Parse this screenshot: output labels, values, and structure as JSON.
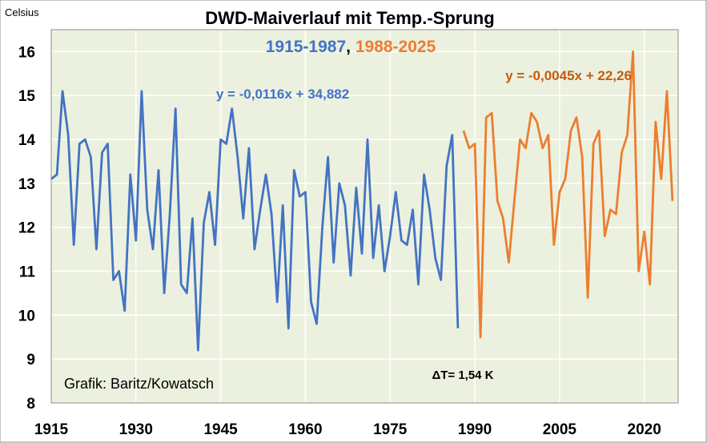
{
  "chart_data": {
    "type": "line",
    "title": "DWD-Maiverlauf mit Temp.-Sprung",
    "subtitle": {
      "part1": "1915-1987",
      "separator": ",",
      "part2": "1988-2025"
    },
    "y_unit_label": "Celsius",
    "xlim": [
      1915,
      2026
    ],
    "ylim": [
      8,
      16.5
    ],
    "xticks": [
      1915,
      1930,
      1945,
      1960,
      1975,
      1990,
      2005,
      2020
    ],
    "yticks": [
      8,
      9,
      10,
      11,
      12,
      13,
      14,
      15,
      16
    ],
    "grid": true,
    "legend": "none",
    "colors": {
      "plot_background": "#ebf1de",
      "series1": "#4472c4",
      "series2": "#ed7d31",
      "trend2": "#e2691d",
      "eq2": "#c55a11",
      "grid": "#ffffff"
    },
    "series": [
      {
        "x_start": 1915,
        "values": [
          13.1,
          13.2,
          15.1,
          14.1,
          11.6,
          13.9,
          14.0,
          13.6,
          11.5,
          13.7,
          13.9,
          10.8,
          11.0,
          10.1,
          13.2,
          11.7,
          15.1,
          12.4,
          11.5,
          13.3,
          10.5,
          12.3,
          14.7,
          10.7,
          10.5,
          12.2,
          9.2,
          12.1,
          12.8,
          11.6,
          14.0,
          13.9,
          14.7,
          13.6,
          12.2,
          13.8,
          11.5,
          12.4,
          13.2,
          12.3,
          10.3,
          12.5,
          9.7,
          13.3,
          12.7,
          12.8,
          10.3,
          9.8,
          12.0,
          13.6,
          11.2,
          13.0,
          12.5,
          10.9,
          12.9,
          11.4,
          14.0,
          11.3,
          12.5,
          11.0,
          11.8,
          12.8,
          11.7,
          11.6,
          12.4,
          10.7,
          13.2,
          12.4,
          11.3,
          10.8,
          13.4,
          14.1,
          9.7
        ]
      },
      {
        "x_start": 1988,
        "values": [
          14.2,
          13.8,
          13.9,
          9.5,
          14.5,
          14.6,
          12.6,
          12.2,
          11.2,
          12.6,
          14.0,
          13.8,
          14.6,
          14.4,
          13.8,
          14.1,
          11.6,
          12.8,
          13.1,
          14.2,
          14.5,
          13.6,
          10.4,
          13.9,
          14.2,
          11.8,
          12.4,
          12.3,
          13.7,
          14.1,
          16.0,
          11.0,
          11.9,
          10.7,
          14.4,
          13.1,
          15.1,
          12.6
        ]
      }
    ],
    "trendlines": [
      {
        "equation": "y = -0,0116x + 34,882",
        "slope": -0.0116,
        "intercept": 34.882,
        "x_from": 1915,
        "x_to": 1987,
        "x_offset": 1914
      },
      {
        "equation": "y = -0,0045x + 22,26",
        "slope": -0.0045,
        "intercept": 22.26,
        "x_from": 1988,
        "x_to": 2025,
        "x_offset": 1914
      }
    ],
    "annotations": {
      "credit": "Grafik: Baritz/Kowatsch",
      "delta": "ΔT= 1,54 K"
    }
  }
}
